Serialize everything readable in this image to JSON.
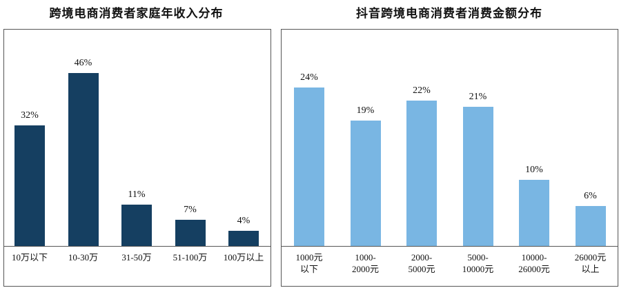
{
  "chart_data": [
    {
      "type": "bar",
      "title": "跨境电商消费者家庭年收入分布",
      "categories": [
        "10万以下",
        "10-30万",
        "31-50万",
        "51-100万",
        "100万以上"
      ],
      "values": [
        32,
        46,
        11,
        7,
        4
      ],
      "labels": [
        "32%",
        "46%",
        "11%",
        "7%",
        "4%"
      ],
      "ylim": [
        0,
        50
      ],
      "color": "#153f61",
      "grid": false,
      "legend": "none"
    },
    {
      "type": "bar",
      "title": "抖音跨境电商消费者消费金额分布",
      "categories": [
        "1000元\n以下",
        "1000-\n2000元",
        "2000-\n5000元",
        "5000-\n10000元",
        "10000-\n26000元",
        "26000元\n以上"
      ],
      "values": [
        24,
        19,
        22,
        21,
        10,
        6
      ],
      "labels": [
        "24%",
        "19%",
        "22%",
        "21%",
        "10%",
        "6%"
      ],
      "ylim": [
        0,
        26
      ],
      "color": "#79b6e3",
      "grid": false,
      "legend": "none"
    }
  ]
}
